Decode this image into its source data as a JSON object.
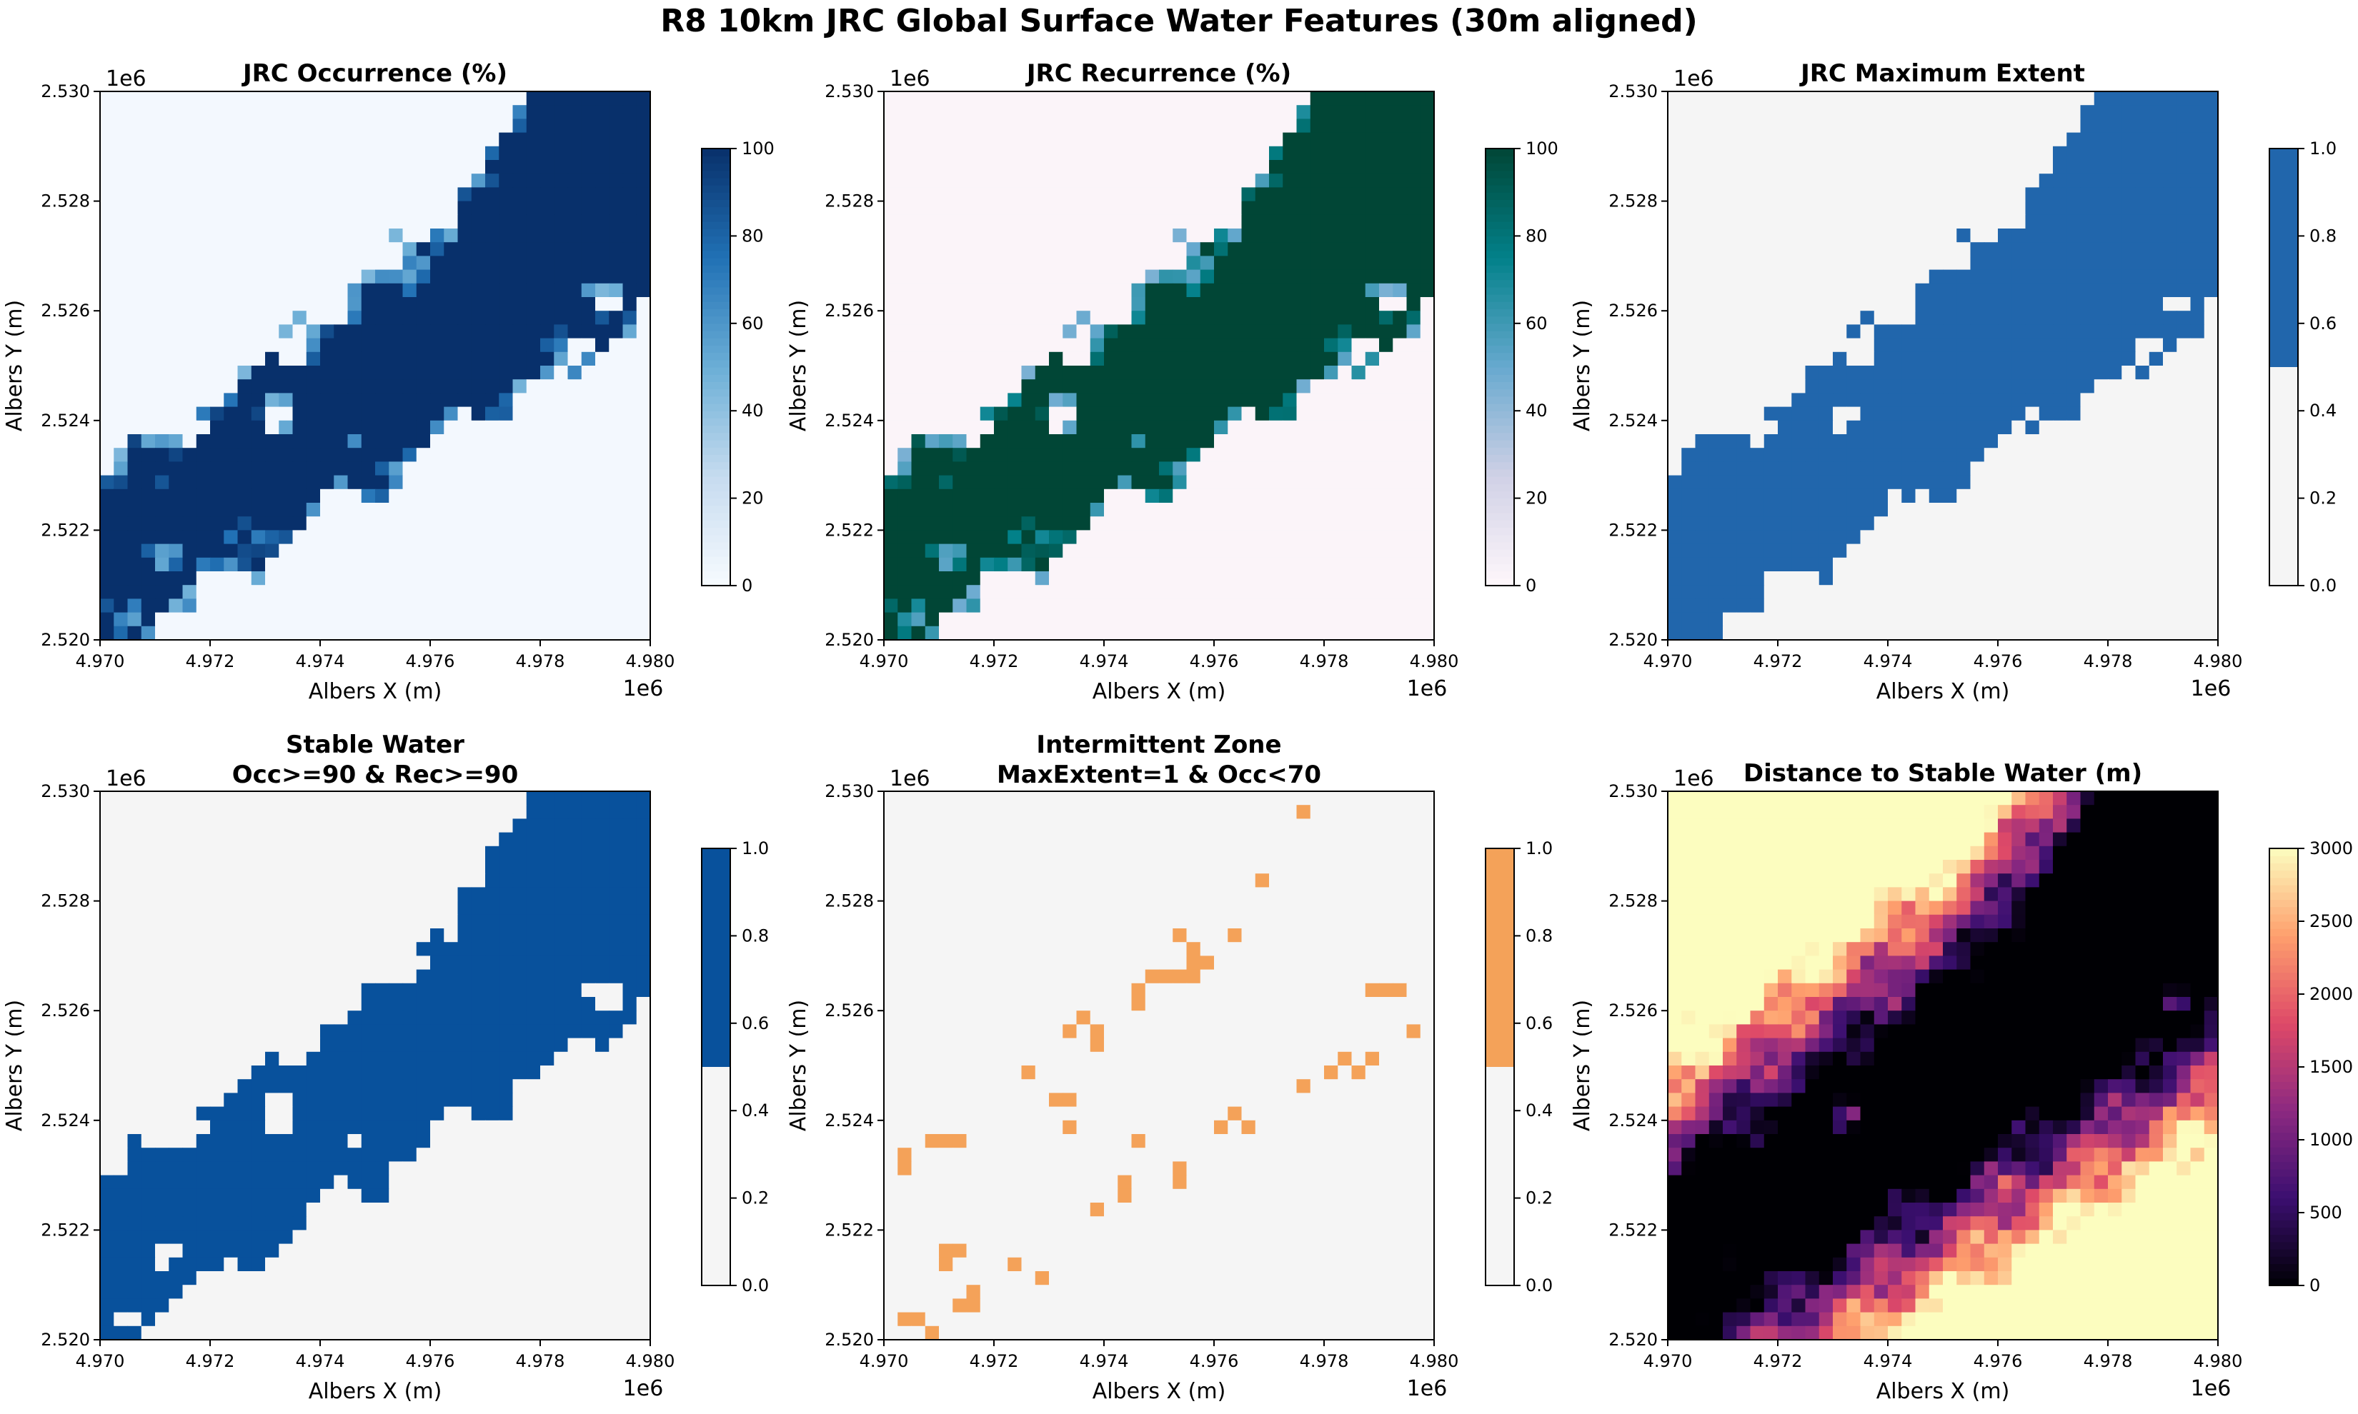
{
  "figure": {
    "title": "R8 10km JRC Global Surface Water Features (30m aligned)"
  },
  "chart_data": [
    {
      "type": "heatmap",
      "title": "JRC Occurrence (%)",
      "title2": "",
      "xlabel": "Albers X (m)",
      "ylabel": "Albers Y (m)",
      "xlim": [
        4970000,
        4980000
      ],
      "ylim": [
        2520000,
        2530000
      ],
      "x_offset_label": "1e6",
      "y_offset_label": "1e6",
      "xticks": [
        "4.970",
        "4.972",
        "4.974",
        "4.976",
        "4.978",
        "4.980"
      ],
      "yticks": [
        "2.520",
        "2.522",
        "2.524",
        "2.526",
        "2.528",
        "2.530"
      ],
      "field": "water",
      "colormap": "Blues",
      "low_color": "#f7fbff",
      "high_color": "#08306b",
      "colorbar": {
        "kind": "continuous",
        "stops": [
          "#f7fbff",
          "#c6dbef",
          "#6baed6",
          "#2171b5",
          "#08306b"
        ],
        "range": [
          0,
          100
        ],
        "ticks": [
          "0",
          "20",
          "40",
          "60",
          "80",
          "100"
        ]
      }
    },
    {
      "type": "heatmap",
      "title": "JRC Recurrence (%)",
      "title2": "",
      "xlabel": "Albers X (m)",
      "ylabel": "Albers Y (m)",
      "xlim": [
        4970000,
        4980000
      ],
      "ylim": [
        2520000,
        2530000
      ],
      "x_offset_label": "1e6",
      "y_offset_label": "1e6",
      "xticks": [
        "4.970",
        "4.972",
        "4.974",
        "4.976",
        "4.978",
        "4.980"
      ],
      "yticks": [
        "2.520",
        "2.522",
        "2.524",
        "2.526",
        "2.528",
        "2.530"
      ],
      "field": "water",
      "colormap": "PuBuGn",
      "low_color": "#fff7fb",
      "high_color": "#014636",
      "colorbar": {
        "kind": "continuous",
        "stops": [
          "#fff7fb",
          "#d0d1e6",
          "#67a9cf",
          "#02818a",
          "#014636"
        ],
        "range": [
          0,
          100
        ],
        "ticks": [
          "0",
          "20",
          "40",
          "60",
          "80",
          "100"
        ]
      }
    },
    {
      "type": "heatmap",
      "title": "JRC Maximum Extent",
      "title2": "",
      "xlabel": "Albers X (m)",
      "ylabel": "Albers Y (m)",
      "xlim": [
        4970000,
        4980000
      ],
      "ylim": [
        2520000,
        2530000
      ],
      "x_offset_label": "1e6",
      "y_offset_label": "1e6",
      "xticks": [
        "4.970",
        "4.972",
        "4.974",
        "4.976",
        "4.978",
        "4.980"
      ],
      "yticks": [
        "2.520",
        "2.522",
        "2.524",
        "2.526",
        "2.528",
        "2.530"
      ],
      "field": "maxextent",
      "colormap": "binary",
      "low_color": "#f5f5f5",
      "high_color": "#2166ac",
      "colorbar": {
        "kind": "binary",
        "range": [
          0,
          1
        ],
        "ticks": [
          "0.0",
          "0.2",
          "0.4",
          "0.6",
          "0.8",
          "1.0"
        ]
      }
    },
    {
      "type": "heatmap",
      "title": "Stable Water",
      "title2": "Occ>=90 & Rec>=90",
      "xlabel": "Albers X (m)",
      "ylabel": "Albers Y (m)",
      "xlim": [
        4970000,
        4980000
      ],
      "ylim": [
        2520000,
        2530000
      ],
      "x_offset_label": "1e6",
      "y_offset_label": "1e6",
      "xticks": [
        "4.970",
        "4.972",
        "4.974",
        "4.976",
        "4.978",
        "4.980"
      ],
      "yticks": [
        "2.520",
        "2.522",
        "2.524",
        "2.526",
        "2.528",
        "2.530"
      ],
      "field": "stable",
      "colormap": "binary",
      "low_color": "#f5f5f5",
      "high_color": "#08519c",
      "colorbar": {
        "kind": "binary",
        "range": [
          0,
          1
        ],
        "ticks": [
          "0.0",
          "0.2",
          "0.4",
          "0.6",
          "0.8",
          "1.0"
        ]
      }
    },
    {
      "type": "heatmap",
      "title": "Intermittent Zone",
      "title2": "MaxExtent=1 & Occ<70",
      "xlabel": "Albers X (m)",
      "ylabel": "Albers Y (m)",
      "xlim": [
        4970000,
        4980000
      ],
      "ylim": [
        2520000,
        2530000
      ],
      "x_offset_label": "1e6",
      "y_offset_label": "1e6",
      "xticks": [
        "4.970",
        "4.972",
        "4.974",
        "4.976",
        "4.978",
        "4.980"
      ],
      "yticks": [
        "2.520",
        "2.522",
        "2.524",
        "2.526",
        "2.528",
        "2.530"
      ],
      "field": "intermittent",
      "colormap": "binary",
      "low_color": "#f5f5f5",
      "high_color": "#f4a259",
      "colorbar": {
        "kind": "binary",
        "range": [
          0,
          1
        ],
        "ticks": [
          "0.0",
          "0.2",
          "0.4",
          "0.6",
          "0.8",
          "1.0"
        ]
      }
    },
    {
      "type": "heatmap",
      "title": "Distance to Stable Water (m)",
      "title2": "",
      "xlabel": "Albers X (m)",
      "ylabel": "Albers Y (m)",
      "xlim": [
        4970000,
        4980000
      ],
      "ylim": [
        2520000,
        2530000
      ],
      "x_offset_label": "1e6",
      "y_offset_label": "1e6",
      "xticks": [
        "4.970",
        "4.972",
        "4.974",
        "4.976",
        "4.978",
        "4.980"
      ],
      "yticks": [
        "2.520",
        "2.522",
        "2.524",
        "2.526",
        "2.528",
        "2.530"
      ],
      "field": "distance",
      "colormap": "magma",
      "low_color": "#000004",
      "high_color": "#fcfdbf",
      "colorbar": {
        "kind": "continuous",
        "stops": [
          "#000004",
          "#3b0f70",
          "#8c2981",
          "#de4968",
          "#fe9f6d",
          "#fcfdbf"
        ],
        "range": [
          0,
          3000
        ],
        "ticks": [
          "0",
          "500",
          "1000",
          "1500",
          "2000",
          "2500",
          "3000"
        ]
      }
    }
  ]
}
